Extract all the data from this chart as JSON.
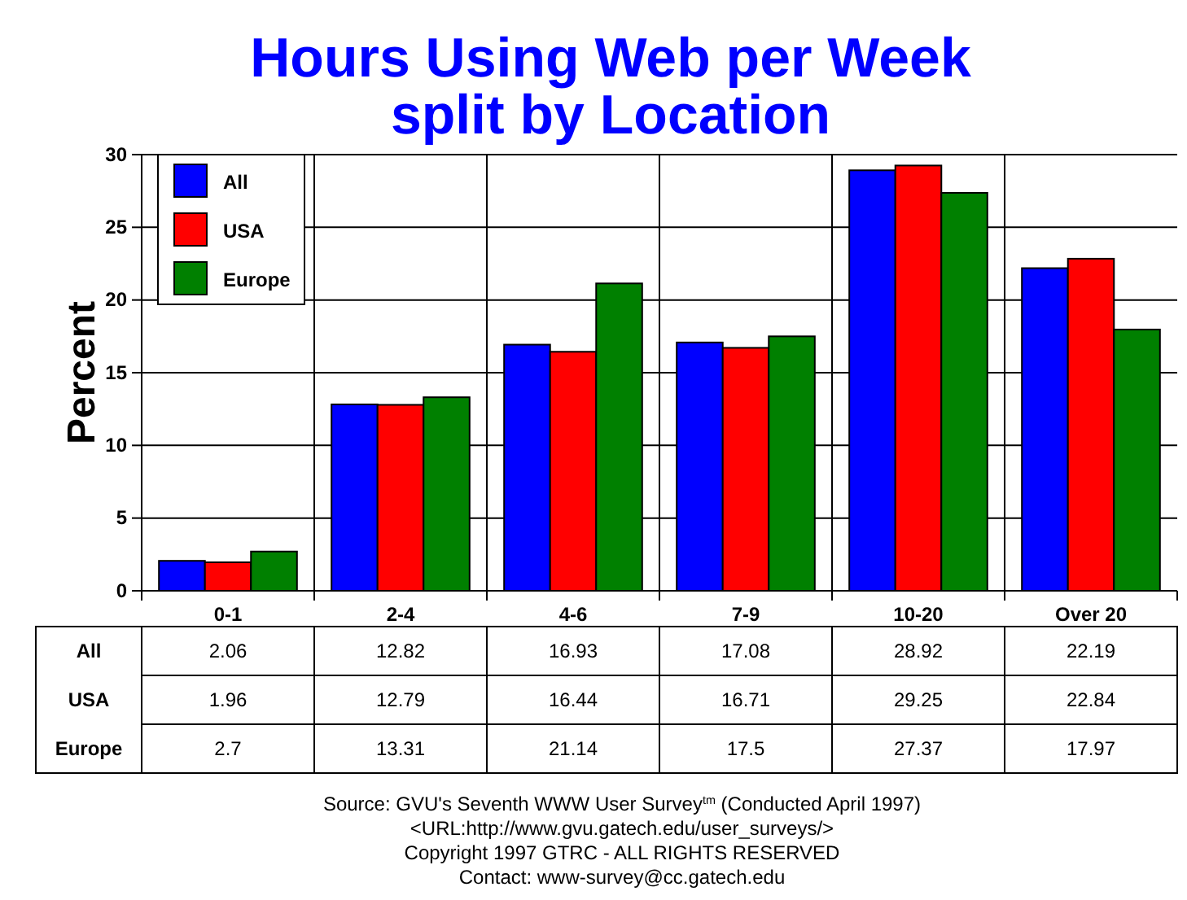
{
  "chart_data": {
    "type": "bar",
    "title": "Hours Using Web per Week\nsplit by Location",
    "ylabel": "Percent",
    "categories": [
      "0-1",
      "2-4",
      "4-6",
      "7-9",
      "10-20",
      "Over 20"
    ],
    "series": [
      {
        "name": "All",
        "color": "#0000ff",
        "values": [
          2.06,
          12.82,
          16.93,
          17.08,
          28.92,
          22.19
        ]
      },
      {
        "name": "USA",
        "color": "#ff0000",
        "values": [
          1.96,
          12.79,
          16.44,
          16.71,
          29.25,
          22.84
        ]
      },
      {
        "name": "Europe",
        "color": "#008000",
        "values": [
          2.7,
          13.31,
          21.14,
          17.5,
          27.37,
          17.97
        ]
      }
    ],
    "ylim": [
      0,
      30
    ],
    "yticks": [
      0,
      5,
      10,
      15,
      20,
      25,
      30
    ],
    "grid": true,
    "legend": "top left",
    "data_labels": true,
    "annotations": [
      "Source: GVU's Seventh WWW User Survey$^{tm}$ (Conducted April 1997)",
      "<URL:http://www.gvu.gatech.edu/user_surveys/>",
      "Copyright 1997 GTRC - ALL RIGHTS RESERVED",
      "Contact: www-survey@cc.gatech.edu"
    ]
  }
}
